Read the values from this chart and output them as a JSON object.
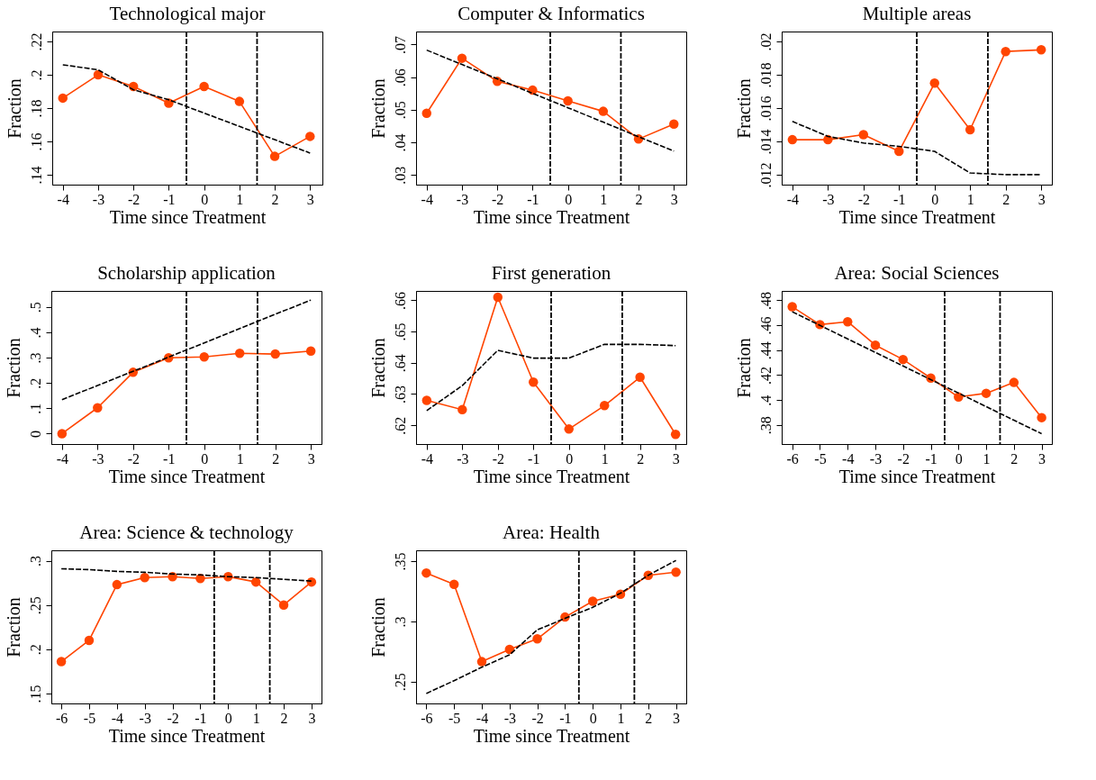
{
  "chart_data": [
    {
      "type": "line",
      "title": "Technological major",
      "xlabel": "Time since Treatment",
      "ylabel": "Fraction",
      "x": [
        -4,
        -3,
        -2,
        -1,
        0,
        1,
        2,
        3
      ],
      "xlim": [
        -4.3,
        3.35
      ],
      "xticks": [
        -4,
        -3,
        -2,
        -1,
        0,
        1,
        2,
        3
      ],
      "ylim": [
        0.134,
        0.226
      ],
      "yticks": [
        {
          "value": 0.14,
          "label": ".14"
        },
        {
          "value": 0.16,
          "label": ".16"
        },
        {
          "value": 0.18,
          "label": ".18"
        },
        {
          "value": 0.2,
          "label": ".2"
        },
        {
          "value": 0.22,
          "label": ".22"
        }
      ],
      "series": [
        {
          "color": "#ff4500",
          "marker": "circle",
          "line_style": "solid",
          "values": [
            0.186,
            0.2,
            0.193,
            0.183,
            0.193,
            0.184,
            0.151,
            0.163
          ]
        },
        {
          "color": "#000000",
          "marker": "none",
          "line_style": "dashed",
          "values": [
            0.206,
            0.203,
            0.191,
            0.185,
            0.177,
            0.169,
            0.161,
            0.153
          ]
        }
      ],
      "ref_lines": [
        {
          "axis": "x",
          "value": -0.5,
          "color": "#000000",
          "line_style": "dashed"
        },
        {
          "axis": "x",
          "value": 1.5,
          "color": "#000000",
          "line_style": "dashed"
        }
      ]
    },
    {
      "type": "line",
      "title": "Computer & Informatics",
      "xlabel": "Time since Treatment",
      "ylabel": "Fraction",
      "x": [
        -4,
        -3,
        -2,
        -1,
        0,
        1,
        2,
        3
      ],
      "xlim": [
        -4.3,
        3.35
      ],
      "xticks": [
        -4,
        -3,
        -2,
        -1,
        0,
        1,
        2,
        3
      ],
      "ylim": [
        0.027,
        0.074
      ],
      "yticks": [
        {
          "value": 0.03,
          "label": ".03"
        },
        {
          "value": 0.04,
          "label": ".04"
        },
        {
          "value": 0.05,
          "label": ".05"
        },
        {
          "value": 0.06,
          "label": ".06"
        },
        {
          "value": 0.07,
          "label": ".07"
        }
      ],
      "series": [
        {
          "color": "#ff4500",
          "marker": "circle",
          "line_style": "solid",
          "values": [
            0.0489,
            0.0658,
            0.0587,
            0.056,
            0.0527,
            0.0495,
            0.041,
            0.0456
          ]
        },
        {
          "color": "#000000",
          "marker": "none",
          "line_style": "dashed",
          "values": [
            0.0683,
            0.0639,
            0.0595,
            0.055,
            0.0506,
            0.0462,
            0.0417,
            0.0373
          ]
        }
      ],
      "ref_lines": [
        {
          "axis": "x",
          "value": -0.5,
          "color": "#000000",
          "line_style": "dashed"
        },
        {
          "axis": "x",
          "value": 1.5,
          "color": "#000000",
          "line_style": "dashed"
        }
      ]
    },
    {
      "type": "line",
      "title": "Multiple areas",
      "xlabel": "Time since Treatment",
      "ylabel": "Fraction",
      "x": [
        -4,
        -3,
        -2,
        -1,
        0,
        1,
        2,
        3
      ],
      "xlim": [
        -4.3,
        3.3
      ],
      "xticks": [
        -4,
        -3,
        -2,
        -1,
        0,
        1,
        2,
        3
      ],
      "ylim": [
        0.0114,
        0.0206
      ],
      "yticks": [
        {
          "value": 0.012,
          "label": ".012"
        },
        {
          "value": 0.014,
          "label": ".014"
        },
        {
          "value": 0.016,
          "label": ".016"
        },
        {
          "value": 0.018,
          "label": ".018"
        },
        {
          "value": 0.02,
          "label": ".02"
        }
      ],
      "series": [
        {
          "color": "#ff4500",
          "marker": "circle",
          "line_style": "solid",
          "values": [
            0.0141,
            0.0141,
            0.0144,
            0.0134,
            0.0175,
            0.0147,
            0.0194,
            0.0195
          ]
        },
        {
          "color": "#000000",
          "marker": "none",
          "line_style": "dashed",
          "values": [
            0.0152,
            0.0143,
            0.0139,
            0.0137,
            0.0134,
            0.0121,
            0.012,
            0.012
          ]
        }
      ],
      "ref_lines": [
        {
          "axis": "x",
          "value": -0.5,
          "color": "#000000",
          "line_style": "dashed"
        },
        {
          "axis": "x",
          "value": 1.5,
          "color": "#000000",
          "line_style": "dashed"
        }
      ]
    },
    {
      "type": "line",
      "title": "Scholarship application",
      "xlabel": "Time since Treatment",
      "ylabel": "Fraction",
      "x": [
        -4,
        -3,
        -2,
        -1,
        0,
        1,
        2,
        3
      ],
      "xlim": [
        -4.3,
        3.3
      ],
      "xticks": [
        -4,
        -3,
        -2,
        -1,
        0,
        1,
        2,
        3
      ],
      "ylim": [
        -0.041,
        0.563
      ],
      "yticks": [
        {
          "value": 0,
          "label": "0"
        },
        {
          "value": 0.1,
          "label": ".1"
        },
        {
          "value": 0.2,
          "label": ".2"
        },
        {
          "value": 0.3,
          "label": ".3"
        },
        {
          "value": 0.4,
          "label": ".4"
        },
        {
          "value": 0.5,
          "label": ".5"
        }
      ],
      "series": [
        {
          "color": "#ff4500",
          "marker": "circle",
          "line_style": "solid",
          "values": [
            0.0,
            0.102,
            0.242,
            0.299,
            0.303,
            0.317,
            0.314,
            0.326
          ]
        },
        {
          "color": "#000000",
          "marker": "none",
          "line_style": "dashed",
          "values": [
            0.134,
            0.19,
            0.246,
            0.302,
            0.358,
            0.415,
            0.471,
            0.527
          ]
        }
      ],
      "ref_lines": [
        {
          "axis": "x",
          "value": -0.5,
          "color": "#000000",
          "line_style": "dashed"
        },
        {
          "axis": "x",
          "value": 1.5,
          "color": "#000000",
          "line_style": "dashed"
        }
      ]
    },
    {
      "type": "line",
      "title": "First generation",
      "xlabel": "Time since Treatment",
      "ylabel": "Fraction",
      "x": [
        -4,
        -3,
        -2,
        -1,
        0,
        1,
        2,
        3
      ],
      "xlim": [
        -4.3,
        3.3
      ],
      "xticks": [
        -4,
        -3,
        -2,
        -1,
        0,
        1,
        2,
        3
      ],
      "ylim": [
        0.614,
        0.663
      ],
      "yticks": [
        {
          "value": 0.62,
          "label": ".62"
        },
        {
          "value": 0.63,
          "label": ".63"
        },
        {
          "value": 0.64,
          "label": ".64"
        },
        {
          "value": 0.65,
          "label": ".65"
        },
        {
          "value": 0.66,
          "label": ".66"
        }
      ],
      "series": [
        {
          "color": "#ff4500",
          "marker": "circle",
          "line_style": "solid",
          "values": [
            0.628,
            0.625,
            0.661,
            0.6338,
            0.6188,
            0.6263,
            0.6354,
            0.6171
          ]
        },
        {
          "color": "#000000",
          "marker": "none",
          "line_style": "dashed",
          "values": [
            0.6247,
            0.6327,
            0.644,
            0.6415,
            0.6415,
            0.6459,
            0.6459,
            0.6455
          ]
        }
      ],
      "ref_lines": [
        {
          "axis": "x",
          "value": -0.5,
          "color": "#000000",
          "line_style": "dashed"
        },
        {
          "axis": "x",
          "value": 1.5,
          "color": "#000000",
          "line_style": "dashed"
        }
      ]
    },
    {
      "type": "line",
      "title": "Area: Social Sciences",
      "xlabel": "Time since Treatment",
      "ylabel": "Fraction",
      "x": [
        -6,
        -5,
        -4,
        -3,
        -2,
        -1,
        0,
        1,
        2,
        3
      ],
      "xlim": [
        -6.38,
        3.37
      ],
      "xticks": [
        -6,
        -5,
        -4,
        -3,
        -2,
        -1,
        0,
        1,
        2,
        3
      ],
      "ylim": [
        0.3647,
        0.4875
      ],
      "yticks": [
        {
          "value": 0.38,
          "label": ".38"
        },
        {
          "value": 0.4,
          "label": ".4"
        },
        {
          "value": 0.42,
          "label": ".42"
        },
        {
          "value": 0.44,
          "label": ".44"
        },
        {
          "value": 0.46,
          "label": ".46"
        },
        {
          "value": 0.48,
          "label": ".48"
        }
      ],
      "series": [
        {
          "color": "#ff4500",
          "marker": "circle",
          "line_style": "solid",
          "values": [
            0.4748,
            0.4605,
            0.4628,
            0.444,
            0.4325,
            0.4176,
            0.4024,
            0.4054,
            0.4141,
            0.3859
          ]
        },
        {
          "color": "#000000",
          "marker": "none",
          "line_style": "dashed",
          "values": [
            0.4708,
            0.4599,
            0.449,
            0.4382,
            0.4273,
            0.4164,
            0.4056,
            0.3947,
            0.3838,
            0.373
          ]
        }
      ],
      "ref_lines": [
        {
          "axis": "x",
          "value": -0.5,
          "color": "#000000",
          "line_style": "dashed"
        },
        {
          "axis": "x",
          "value": 1.5,
          "color": "#000000",
          "line_style": "dashed"
        }
      ]
    },
    {
      "type": "line",
      "title": "Area: Science & technology",
      "xlabel": "Time since Treatment",
      "ylabel": "Fraction",
      "x": [
        -6,
        -5,
        -4,
        -3,
        -2,
        -1,
        0,
        1,
        2,
        3
      ],
      "xlim": [
        -6.36,
        3.36
      ],
      "xticks": [
        -6,
        -5,
        -4,
        -3,
        -2,
        -1,
        0,
        1,
        2,
        3
      ],
      "ylim": [
        0.1387,
        0.3118
      ],
      "yticks": [
        {
          "value": 0.15,
          "label": ".15"
        },
        {
          "value": 0.2,
          "label": ".2"
        },
        {
          "value": 0.25,
          "label": ".25"
        },
        {
          "value": 0.3,
          "label": ".3"
        }
      ],
      "series": [
        {
          "color": "#ff4500",
          "marker": "circle",
          "line_style": "solid",
          "values": [
            0.186,
            0.21,
            0.273,
            0.281,
            0.282,
            0.28,
            0.282,
            0.276,
            0.25,
            0.276
          ]
        },
        {
          "color": "#000000",
          "marker": "none",
          "line_style": "dashed",
          "values": [
            0.291,
            0.29,
            0.288,
            0.287,
            0.285,
            0.284,
            0.282,
            0.281,
            0.279,
            0.277
          ]
        }
      ],
      "ref_lines": [
        {
          "axis": "x",
          "value": -0.5,
          "color": "#000000",
          "line_style": "dashed"
        },
        {
          "axis": "x",
          "value": 1.5,
          "color": "#000000",
          "line_style": "dashed"
        }
      ]
    },
    {
      "type": "line",
      "title": "Area: Health",
      "xlabel": "Time since Treatment",
      "ylabel": "Fraction",
      "x": [
        -6,
        -5,
        -4,
        -3,
        -2,
        -1,
        0,
        1,
        2,
        3
      ],
      "xlim": [
        -6.37,
        3.37
      ],
      "xticks": [
        -6,
        -5,
        -4,
        -3,
        -2,
        -1,
        0,
        1,
        2,
        3
      ],
      "ylim": [
        0.2319,
        0.359
      ],
      "yticks": [
        {
          "value": 0.25,
          "label": ".25"
        },
        {
          "value": 0.3,
          "label": ".3"
        },
        {
          "value": 0.35,
          "label": ".35"
        }
      ],
      "series": [
        {
          "color": "#ff4500",
          "marker": "circle",
          "line_style": "solid",
          "values": [
            0.3402,
            0.3308,
            0.2666,
            0.2768,
            0.2855,
            0.3036,
            0.3168,
            0.3225,
            0.3383,
            0.3409
          ]
        },
        {
          "color": "#000000",
          "marker": "none",
          "line_style": "dashed",
          "values": [
            0.2402,
            0.2508,
            0.262,
            0.2723,
            0.293,
            0.3025,
            0.3117,
            0.3234,
            0.3383,
            0.3506
          ]
        }
      ],
      "ref_lines": [
        {
          "axis": "x",
          "value": -0.5,
          "color": "#000000",
          "line_style": "dashed"
        },
        {
          "axis": "x",
          "value": 1.5,
          "color": "#000000",
          "line_style": "dashed"
        }
      ]
    }
  ]
}
